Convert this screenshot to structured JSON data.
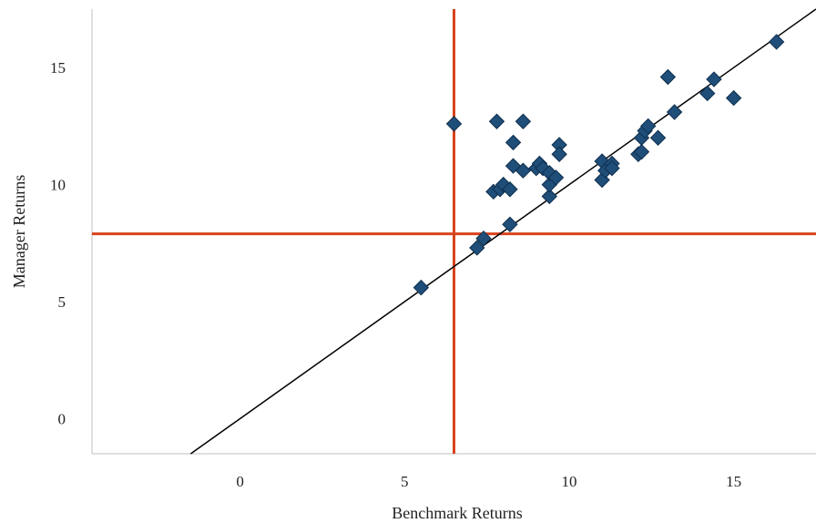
{
  "chart_data": {
    "type": "scatter",
    "title": "",
    "xlabel": "Benchmark Returns",
    "ylabel": "Manager Returns",
    "xlim": [
      -4.5,
      17.5
    ],
    "ylim": [
      -1.5,
      17.5
    ],
    "xticks": [
      0,
      5,
      10,
      15
    ],
    "yticks": [
      0,
      5,
      10,
      15
    ],
    "grid": false,
    "legend": "none",
    "series": [
      {
        "marker": "diamond",
        "color": "#1f4e79",
        "points": [
          [
            5.5,
            5.6
          ],
          [
            6.5,
            12.6
          ],
          [
            7.2,
            7.3
          ],
          [
            7.4,
            7.7
          ],
          [
            7.7,
            9.7
          ],
          [
            7.8,
            12.7
          ],
          [
            7.9,
            9.8
          ],
          [
            8.0,
            10.0
          ],
          [
            8.2,
            9.8
          ],
          [
            8.2,
            8.3
          ],
          [
            8.3,
            11.8
          ],
          [
            8.3,
            10.8
          ],
          [
            8.6,
            10.6
          ],
          [
            8.6,
            12.7
          ],
          [
            9.0,
            10.7
          ],
          [
            9.1,
            10.9
          ],
          [
            9.2,
            10.7
          ],
          [
            9.4,
            9.5
          ],
          [
            9.4,
            10.0
          ],
          [
            9.4,
            10.5
          ],
          [
            9.6,
            10.3
          ],
          [
            9.7,
            11.7
          ],
          [
            9.7,
            11.3
          ],
          [
            11.0,
            11.0
          ],
          [
            11.0,
            10.2
          ],
          [
            11.1,
            10.6
          ],
          [
            11.3,
            10.9
          ],
          [
            11.3,
            10.7
          ],
          [
            12.1,
            11.3
          ],
          [
            12.2,
            12.0
          ],
          [
            12.2,
            11.4
          ],
          [
            12.3,
            12.3
          ],
          [
            12.4,
            12.5
          ],
          [
            12.7,
            12.0
          ],
          [
            13.0,
            14.6
          ],
          [
            13.2,
            13.1
          ],
          [
            14.2,
            13.9
          ],
          [
            14.4,
            14.5
          ],
          [
            15.0,
            13.7
          ],
          [
            16.3,
            16.1
          ]
        ]
      }
    ],
    "trendline": {
      "color": "#000000",
      "from": [
        -1.5,
        -1.5
      ],
      "to": [
        17.5,
        17.5
      ]
    },
    "reference_lines": {
      "color": "#d8431c",
      "x": 6.5,
      "y": 7.9
    }
  }
}
